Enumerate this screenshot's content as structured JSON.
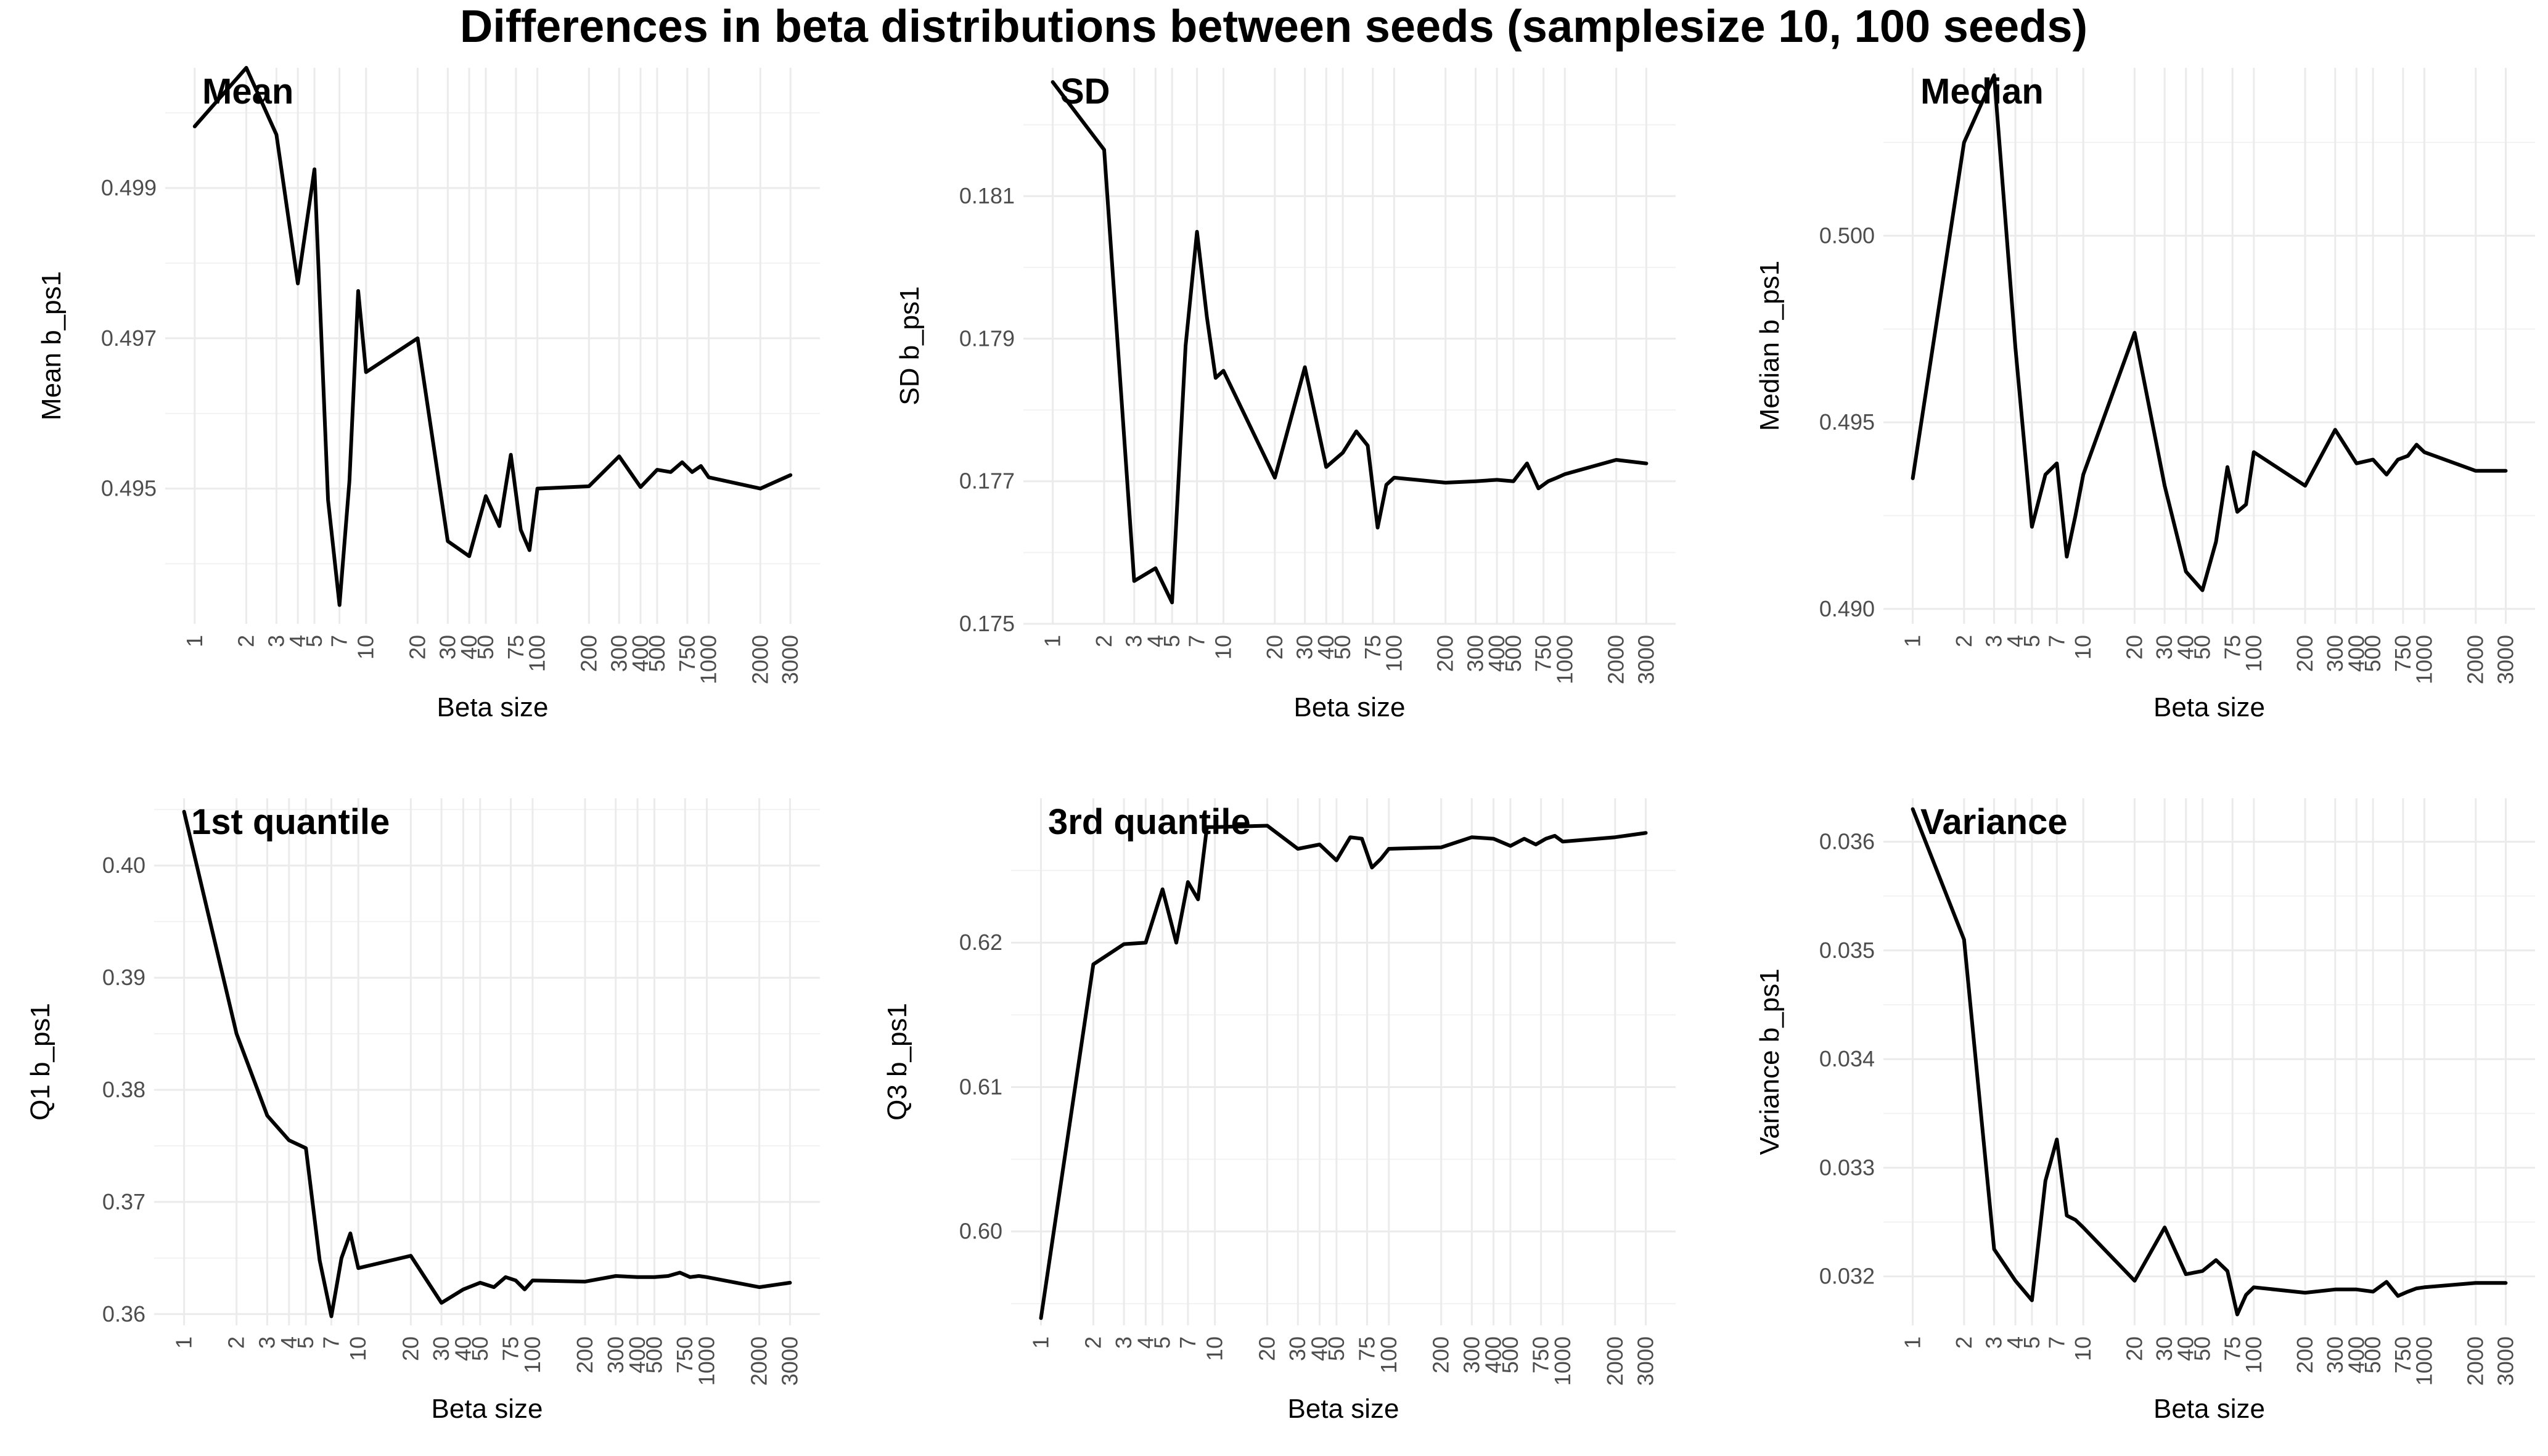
{
  "figure_title": "Differences in beta distributions between seeds (samplesize 10, 100 seeds)",
  "x_tick_labels": [
    "1",
    "2",
    "3",
    "4",
    "5",
    "7",
    "10",
    "20",
    "30",
    "40",
    "50",
    "75",
    "100",
    "200",
    "300",
    "400",
    "500",
    "750",
    "1000",
    "2000",
    "3000"
  ],
  "chart_data": [
    {
      "type": "line",
      "title": "Mean",
      "xlabel": "Beta size",
      "ylabel": "Mean b_ps1",
      "x_scale": "log",
      "ylim": [
        0.4932,
        0.5006
      ],
      "yticks": [
        0.495,
        0.497,
        0.499
      ],
      "ytick_labels": [
        "0.495",
        "0.497",
        "0.499"
      ],
      "series": [
        {
          "x": [
            1,
            2,
            3,
            4,
            5,
            6,
            7,
            8,
            9,
            10,
            20,
            30,
            40,
            50,
            60,
            70,
            80,
            90,
            100,
            200,
            300,
            400,
            500,
            600,
            700,
            800,
            900,
            1000,
            2000,
            3000
          ],
          "y": [
            0.49982,
            0.5006,
            0.49971,
            0.49773,
            0.49925,
            0.49485,
            0.49345,
            0.4951,
            0.49763,
            0.49655,
            0.497,
            0.4943,
            0.4941,
            0.4949,
            0.4945,
            0.49545,
            0.49445,
            0.49418,
            0.495,
            0.49503,
            0.49543,
            0.49502,
            0.49525,
            0.49522,
            0.49535,
            0.49522,
            0.4953,
            0.49515,
            0.495,
            0.49518
          ]
        }
      ]
    },
    {
      "type": "line",
      "title": "SD",
      "xlabel": "Beta size",
      "ylabel": "SD b_ps1",
      "x_scale": "log",
      "ylim": [
        0.175,
        0.1828
      ],
      "yticks": [
        0.175,
        0.177,
        0.179,
        0.181
      ],
      "ytick_labels": [
        "0.175",
        "0.177",
        "0.179",
        "0.181"
      ],
      "series": [
        {
          "x": [
            1,
            2,
            3,
            4,
            5,
            6,
            7,
            8,
            9,
            10,
            20,
            30,
            40,
            50,
            60,
            70,
            80,
            90,
            100,
            200,
            300,
            400,
            500,
            600,
            700,
            800,
            900,
            1000,
            2000,
            3000
          ],
          "y": [
            0.1826,
            0.18165,
            0.1756,
            0.17578,
            0.1753,
            0.1789,
            0.1805,
            0.1793,
            0.17845,
            0.17855,
            0.17705,
            0.1786,
            0.1772,
            0.1774,
            0.1777,
            0.1775,
            0.17635,
            0.17695,
            0.17705,
            0.17698,
            0.177,
            0.17702,
            0.177,
            0.17725,
            0.1769,
            0.177,
            0.17705,
            0.1771,
            0.1773,
            0.17725
          ]
        }
      ]
    },
    {
      "type": "line",
      "title": "Median",
      "xlabel": "Beta size",
      "ylabel": "Median b_ps1",
      "x_scale": "log",
      "ylim": [
        0.4896,
        0.5045
      ],
      "yticks": [
        0.49,
        0.495,
        0.5
      ],
      "ytick_labels": [
        "0.490",
        "0.495",
        "0.500"
      ],
      "series": [
        {
          "x": [
            1,
            2,
            3,
            4,
            5,
            6,
            7,
            8,
            9,
            10,
            20,
            30,
            40,
            50,
            60,
            70,
            80,
            90,
            100,
            200,
            300,
            400,
            500,
            600,
            700,
            800,
            900,
            1000,
            2000,
            3000
          ],
          "y": [
            0.4935,
            0.5025,
            0.5043,
            0.497,
            0.4922,
            0.4936,
            0.4939,
            0.4914,
            0.4925,
            0.4936,
            0.4974,
            0.4933,
            0.491,
            0.4905,
            0.4918,
            0.4938,
            0.4926,
            0.4928,
            0.4942,
            0.4933,
            0.4948,
            0.4939,
            0.494,
            0.4936,
            0.494,
            0.4941,
            0.4944,
            0.4942,
            0.4937,
            0.4937
          ]
        }
      ]
    },
    {
      "type": "line",
      "title": "1st quantile",
      "xlabel": "Beta size",
      "ylabel": "Q1 b_ps1",
      "x_scale": "log",
      "ylim": [
        0.359,
        0.406
      ],
      "yticks": [
        0.36,
        0.37,
        0.38,
        0.39,
        0.4
      ],
      "ytick_labels": [
        "0.36",
        "0.37",
        "0.38",
        "0.39",
        "0.40"
      ],
      "series": [
        {
          "x": [
            1,
            2,
            3,
            4,
            5,
            6,
            7,
            8,
            9,
            10,
            20,
            30,
            40,
            50,
            60,
            70,
            80,
            90,
            100,
            200,
            300,
            400,
            500,
            600,
            700,
            800,
            900,
            1000,
            2000,
            3000
          ],
          "y": [
            0.4048,
            0.385,
            0.3777,
            0.3755,
            0.3748,
            0.3648,
            0.3598,
            0.365,
            0.3672,
            0.3641,
            0.3652,
            0.361,
            0.3622,
            0.3628,
            0.3624,
            0.3633,
            0.363,
            0.3622,
            0.363,
            0.3629,
            0.3634,
            0.3633,
            0.3633,
            0.3634,
            0.3637,
            0.3633,
            0.3634,
            0.3633,
            0.3624,
            0.3628
          ]
        }
      ]
    },
    {
      "type": "line",
      "title": "3rd quantile",
      "xlabel": "Beta size",
      "ylabel": "Q3 b_ps1",
      "x_scale": "log",
      "ylim": [
        0.5935,
        0.63
      ],
      "yticks": [
        0.6,
        0.61,
        0.62
      ],
      "ytick_labels": [
        "0.60",
        "0.61",
        "0.62"
      ],
      "series": [
        {
          "x": [
            1,
            2,
            3,
            4,
            5,
            6,
            7,
            8,
            9,
            10,
            20,
            30,
            40,
            50,
            60,
            70,
            80,
            90,
            100,
            200,
            300,
            400,
            500,
            600,
            700,
            800,
            900,
            1000,
            2000,
            3000
          ],
          "y": [
            0.594,
            0.6185,
            0.6199,
            0.62,
            0.6237,
            0.62,
            0.6242,
            0.623,
            0.628,
            0.628,
            0.6281,
            0.6265,
            0.6268,
            0.6257,
            0.6273,
            0.6272,
            0.6252,
            0.6258,
            0.6265,
            0.6266,
            0.6273,
            0.6272,
            0.6267,
            0.6272,
            0.6268,
            0.6272,
            0.6274,
            0.627,
            0.6273,
            0.6276
          ]
        }
      ]
    },
    {
      "type": "line",
      "title": "Variance",
      "xlabel": "Beta size",
      "ylabel": "Variance b_ps1",
      "x_scale": "log",
      "ylim": [
        0.03155,
        0.0364
      ],
      "yticks": [
        0.032,
        0.033,
        0.034,
        0.035,
        0.036
      ],
      "ytick_labels": [
        "0.032",
        "0.033",
        "0.034",
        "0.035",
        "0.036"
      ],
      "series": [
        {
          "x": [
            1,
            2,
            3,
            4,
            5,
            6,
            7,
            8,
            9,
            10,
            20,
            30,
            40,
            50,
            60,
            70,
            80,
            90,
            100,
            200,
            300,
            400,
            500,
            600,
            700,
            800,
            900,
            1000,
            2000,
            3000
          ],
          "y": [
            0.0363,
            0.0351,
            0.03225,
            0.03196,
            0.03178,
            0.03288,
            0.03326,
            0.03256,
            0.03252,
            0.03245,
            0.03196,
            0.03245,
            0.03202,
            0.03205,
            0.03215,
            0.03205,
            0.03165,
            0.03183,
            0.0319,
            0.03185,
            0.03188,
            0.03188,
            0.03186,
            0.03195,
            0.03182,
            0.03186,
            0.03189,
            0.0319,
            0.03194,
            0.03194
          ]
        }
      ]
    }
  ]
}
